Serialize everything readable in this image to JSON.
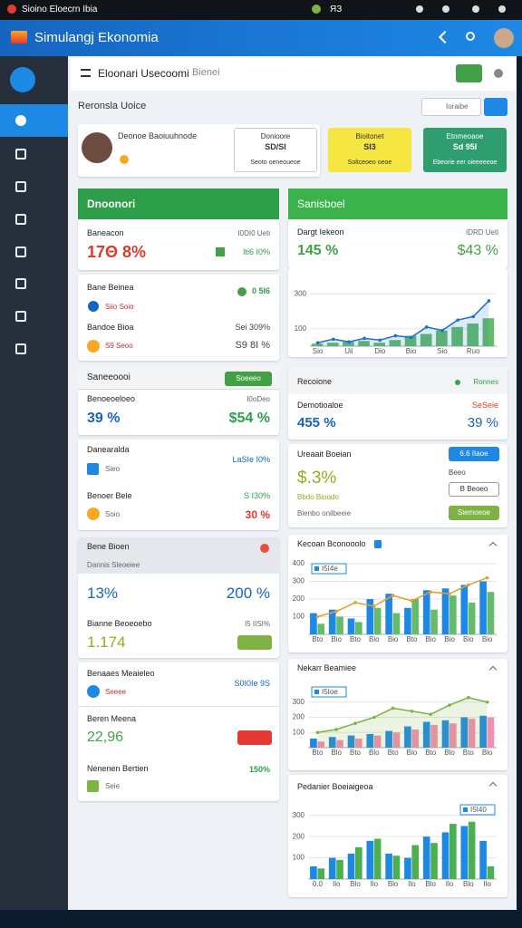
{
  "status_bar": {
    "left": "Sioino Eloecrn Ibia",
    "right": "ЯЗ"
  },
  "app_bar": {
    "title": "Simulangj Ekonomia"
  },
  "toolbar": {
    "title": "Eloonari Usecoomi",
    "subtitle": "Bienei"
  },
  "section": {
    "title": "Reronsla Uoice",
    "search": "Ioraibe"
  },
  "profile": {
    "name": "Deonoe Baoiuuhnode"
  },
  "tiles": [
    {
      "label": "Donioore",
      "value": "SD/SI",
      "note": "Seoto oeneoueoe"
    },
    {
      "label": "Bioitonet",
      "value": "SI3",
      "note": "Soltceoeo oeoe"
    },
    {
      "label": "Etnmeoaoe",
      "value": "Sd 95I",
      "note": "Ebeorie eer oieeeeeoe"
    }
  ],
  "left": {
    "header": "Dnoonori",
    "balance": {
      "label": "Baneacon",
      "meta": "I0DI0 Ueti",
      "value": "17Θ 8%",
      "badge": "Iti6 I0%"
    },
    "budget": {
      "title": "Bane Beinea",
      "badge": "0 5I6",
      "row1": "Siio Soio",
      "title2": "Bandoe Bioa",
      "badge2": "Sei 309%",
      "row2": "S9 Seoo",
      "value2": "S9 8I %"
    },
    "header2": {
      "title": "Saneeoooi",
      "button": "Soeeeo"
    },
    "rates": {
      "label": "Benoeoeloeo",
      "meta": "I0oDeo",
      "value": "39 %",
      "value2": "$54 %"
    },
    "deals": {
      "title": "Danearalda",
      "meta": "LaSIe I0%",
      "row1": "Sieo",
      "title2": "Benoer Bele",
      "meta2": "S I30%",
      "row2": "Soio",
      "value2": "30 %"
    },
    "growth": {
      "header": "Bene Bioen",
      "sub": "Dannis Sleoeiee",
      "value": "13%",
      "value2": "200 %",
      "label": "Bianne Beoeoebo",
      "meta": "I5 IISI%",
      "value3": "1.174"
    },
    "market": {
      "title": "Benaaes Meaieleo",
      "meta": "S0I0Ie 9S",
      "row1": "Seeee",
      "title2": "Beren Meena",
      "value2": "22,96",
      "title3": "Nenenen Bertien",
      "meta3": "150%",
      "row3": "Seie"
    }
  },
  "right": {
    "header": "Sanisboel",
    "summary": {
      "label": "Dargt Iekeon",
      "meta": "IDRD Ueti",
      "value": "145 %",
      "value2": "$43 %"
    },
    "region": {
      "title": "Recoione",
      "badge": "Ronnes",
      "label": "Demotioaloe",
      "value": "455 %",
      "meta": "SeSeie",
      "value2": "39 %"
    },
    "account": {
      "title": "Ureaait Boeian",
      "button": "6.6 IIaoe",
      "value": "$.3%",
      "meta": "Beeo",
      "label": "Bbdo Bioodo",
      "button2": "B Beoeo",
      "note": "Bienbo onilbeeie",
      "button3": "Siemoeoe"
    }
  },
  "chart_data": [
    {
      "type": "bar",
      "categories": [
        "Sio",
        null,
        "Uii",
        null,
        "Dio",
        null,
        "Bio",
        null,
        "Sio",
        null,
        "Ruo",
        null
      ],
      "ylim": [
        0,
        400
      ],
      "yticks": [
        100,
        300
      ],
      "grid": true,
      "series": [
        {
          "color": "#66bb6a",
          "values": [
            15,
            20,
            25,
            30,
            20,
            35,
            60,
            70,
            90,
            110,
            130,
            160
          ]
        },
        {
          "type": "line",
          "area": true,
          "color": "#1e6fd0",
          "values": [
            20,
            40,
            25,
            45,
            35,
            60,
            50,
            110,
            90,
            150,
            170,
            260
          ]
        }
      ]
    },
    {
      "type": "bar",
      "title": "Kecoan Bconooolo",
      "categories": [
        "Bto",
        "Bio",
        "Bto",
        "Bio",
        "Bio",
        "Bto",
        "Bio",
        "Bio",
        "Bio",
        "Bio"
      ],
      "ylim": [
        0,
        400
      ],
      "yticks": [
        100,
        200,
        300,
        400
      ],
      "grid": true,
      "legend": "top-left",
      "series": [
        {
          "name": "I5I4e",
          "color": "#1e88e5",
          "values": [
            120,
            140,
            90,
            200,
            230,
            150,
            250,
            260,
            280,
            300
          ]
        },
        {
          "color": "#66bb6a",
          "values": [
            60,
            100,
            70,
            150,
            120,
            200,
            140,
            220,
            180,
            240
          ]
        },
        {
          "type": "line",
          "color": "#e0a030",
          "values": [
            100,
            130,
            180,
            160,
            220,
            190,
            240,
            230,
            280,
            320
          ]
        }
      ]
    },
    {
      "type": "bar",
      "title": "Nekarr Beamiee",
      "categories": [
        "Bto",
        "Blo",
        "Bto",
        "Blo",
        "Bto",
        "Blo",
        "Bto",
        "Blo",
        "Bto",
        "Blo"
      ],
      "ylim": [
        0,
        400
      ],
      "yticks": [
        100,
        200,
        300
      ],
      "grid": true,
      "legend": "top-left",
      "series": [
        {
          "name": "I5Ioe",
          "color": "#1e88e5",
          "values": [
            60,
            70,
            80,
            90,
            110,
            140,
            170,
            180,
            200,
            210
          ]
        },
        {
          "color": "#f48fb1",
          "values": [
            40,
            50,
            60,
            80,
            100,
            120,
            150,
            160,
            190,
            200
          ]
        },
        {
          "type": "line",
          "area": true,
          "color": "#7cb342",
          "values": [
            100,
            120,
            160,
            200,
            260,
            240,
            220,
            280,
            330,
            300
          ]
        }
      ]
    },
    {
      "type": "bar",
      "title": "Pedanier Boeiaigeoa",
      "categories": [
        "0.0",
        "Ilo",
        "Blo",
        "Ilo",
        "Blo",
        "Ilo",
        "Blo",
        "Ilo",
        "Blo",
        "Ilo"
      ],
      "ylim": [
        0,
        350
      ],
      "yticks": [
        100,
        200,
        300
      ],
      "grid": true,
      "legend": "top-right",
      "series": [
        {
          "name": "I5I40",
          "color": "#1e88e5",
          "values": [
            60,
            100,
            120,
            180,
            120,
            100,
            200,
            220,
            250,
            180
          ]
        },
        {
          "color": "#4caf50",
          "values": [
            50,
            90,
            150,
            190,
            110,
            160,
            170,
            260,
            270,
            60
          ]
        }
      ]
    }
  ]
}
